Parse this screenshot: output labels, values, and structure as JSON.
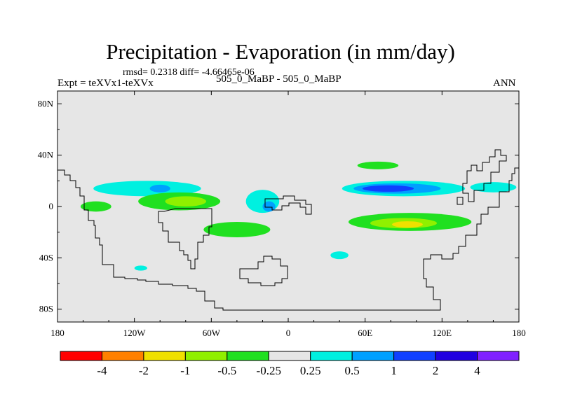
{
  "chart_data": {
    "type": "contour-map",
    "title": "Precipitation - Evaporation (in mm/day)",
    "stats_text": "rmsd= 0.2318 diff= -4.66465e-06",
    "left_label": "Expt = teXVx1-teXVx",
    "center_label": "505_0_MaBP - 505_0_MaBP",
    "right_label": "ANN",
    "stats": {
      "rmsd": 0.2318,
      "diff": -4.66465e-06
    },
    "xlim": [
      -180,
      180
    ],
    "ylim": [
      -90,
      90
    ],
    "x_ticks": [
      {
        "value": -180,
        "label": "180"
      },
      {
        "value": -120,
        "label": "120W"
      },
      {
        "value": -60,
        "label": "60W"
      },
      {
        "value": 0,
        "label": "0"
      },
      {
        "value": 60,
        "label": "60E"
      },
      {
        "value": 120,
        "label": "120E"
      },
      {
        "value": 180,
        "label": "180"
      }
    ],
    "y_ticks": [
      {
        "value": 80,
        "label": "80N"
      },
      {
        "value": 40,
        "label": "40N"
      },
      {
        "value": 0,
        "label": "0"
      },
      {
        "value": -40,
        "label": "40S"
      },
      {
        "value": -80,
        "label": "80S"
      }
    ],
    "background_color": "#e6e6e6",
    "colorbar": {
      "levels": [
        "-4",
        "-2",
        "-1",
        "-0.5",
        "-0.25",
        "0.25",
        "0.5",
        "1",
        "2",
        "4"
      ],
      "colors": [
        "#ff0000",
        "#ff8000",
        "#f0e000",
        "#90f000",
        "#20e020",
        "#e6e6e6",
        "#00f0e0",
        "#00a0ff",
        "#1040ff",
        "#2000e0",
        "#8020ff"
      ]
    },
    "features": [
      {
        "name": "north-pacific-cyan-band",
        "level_color": "#00f0e0",
        "center": [
          -110,
          14
        ],
        "radius": [
          42,
          6
        ]
      },
      {
        "name": "central-america-blue-patch",
        "level_color": "#00a0ff",
        "center": [
          -100,
          14
        ],
        "radius": [
          8,
          3
        ]
      },
      {
        "name": "east-pacific-green-patch",
        "level_color": "#20e020",
        "center": [
          -85,
          4
        ],
        "radius": [
          32,
          7
        ]
      },
      {
        "name": "east-pacific-lime-patch",
        "level_color": "#90f000",
        "center": [
          -80,
          4
        ],
        "radius": [
          16,
          4
        ]
      },
      {
        "name": "central-pacific-green-patch",
        "level_color": "#20e020",
        "center": [
          -150,
          0
        ],
        "radius": [
          12,
          4
        ]
      },
      {
        "name": "atlantic-cyan-patch",
        "level_color": "#00f0e0",
        "center": [
          -20,
          4
        ],
        "radius": [
          13,
          9
        ]
      },
      {
        "name": "atlantic-blue-patch",
        "level_color": "#00a0ff",
        "center": [
          -15,
          0
        ],
        "radius": [
          5,
          4
        ]
      },
      {
        "name": "south-america-green-band",
        "level_color": "#20e020",
        "center": [
          -40,
          -18
        ],
        "radius": [
          26,
          6
        ]
      },
      {
        "name": "north-indian-cyan-band",
        "level_color": "#00f0e0",
        "center": [
          90,
          14
        ],
        "radius": [
          48,
          6
        ]
      },
      {
        "name": "north-indian-blue-band",
        "level_color": "#00a0ff",
        "center": [
          85,
          14
        ],
        "radius": [
          34,
          4
        ]
      },
      {
        "name": "north-indian-deepblue-core",
        "level_color": "#1040ff",
        "center": [
          78,
          14
        ],
        "radius": [
          20,
          2.5
        ]
      },
      {
        "name": "west-pacific-cyan-patch",
        "level_color": "#00f0e0",
        "center": [
          160,
          15
        ],
        "radius": [
          18,
          4
        ]
      },
      {
        "name": "north-green-streak",
        "level_color": "#20e020",
        "center": [
          70,
          32
        ],
        "radius": [
          16,
          3
        ]
      },
      {
        "name": "south-indian-green-band",
        "level_color": "#20e020",
        "center": [
          95,
          -12
        ],
        "radius": [
          48,
          7
        ]
      },
      {
        "name": "south-indian-lime-band",
        "level_color": "#90f000",
        "center": [
          90,
          -13
        ],
        "radius": [
          26,
          4
        ]
      },
      {
        "name": "south-indian-yellow-core",
        "level_color": "#f0e000",
        "center": [
          93,
          -14
        ],
        "radius": [
          12,
          2.5
        ]
      },
      {
        "name": "south-cyan-patch",
        "level_color": "#00f0e0",
        "center": [
          40,
          -38
        ],
        "radius": [
          7,
          3
        ]
      },
      {
        "name": "southwest-cyan-patch",
        "level_color": "#00f0e0",
        "center": [
          -115,
          -48
        ],
        "radius": [
          5,
          2
        ]
      }
    ]
  }
}
